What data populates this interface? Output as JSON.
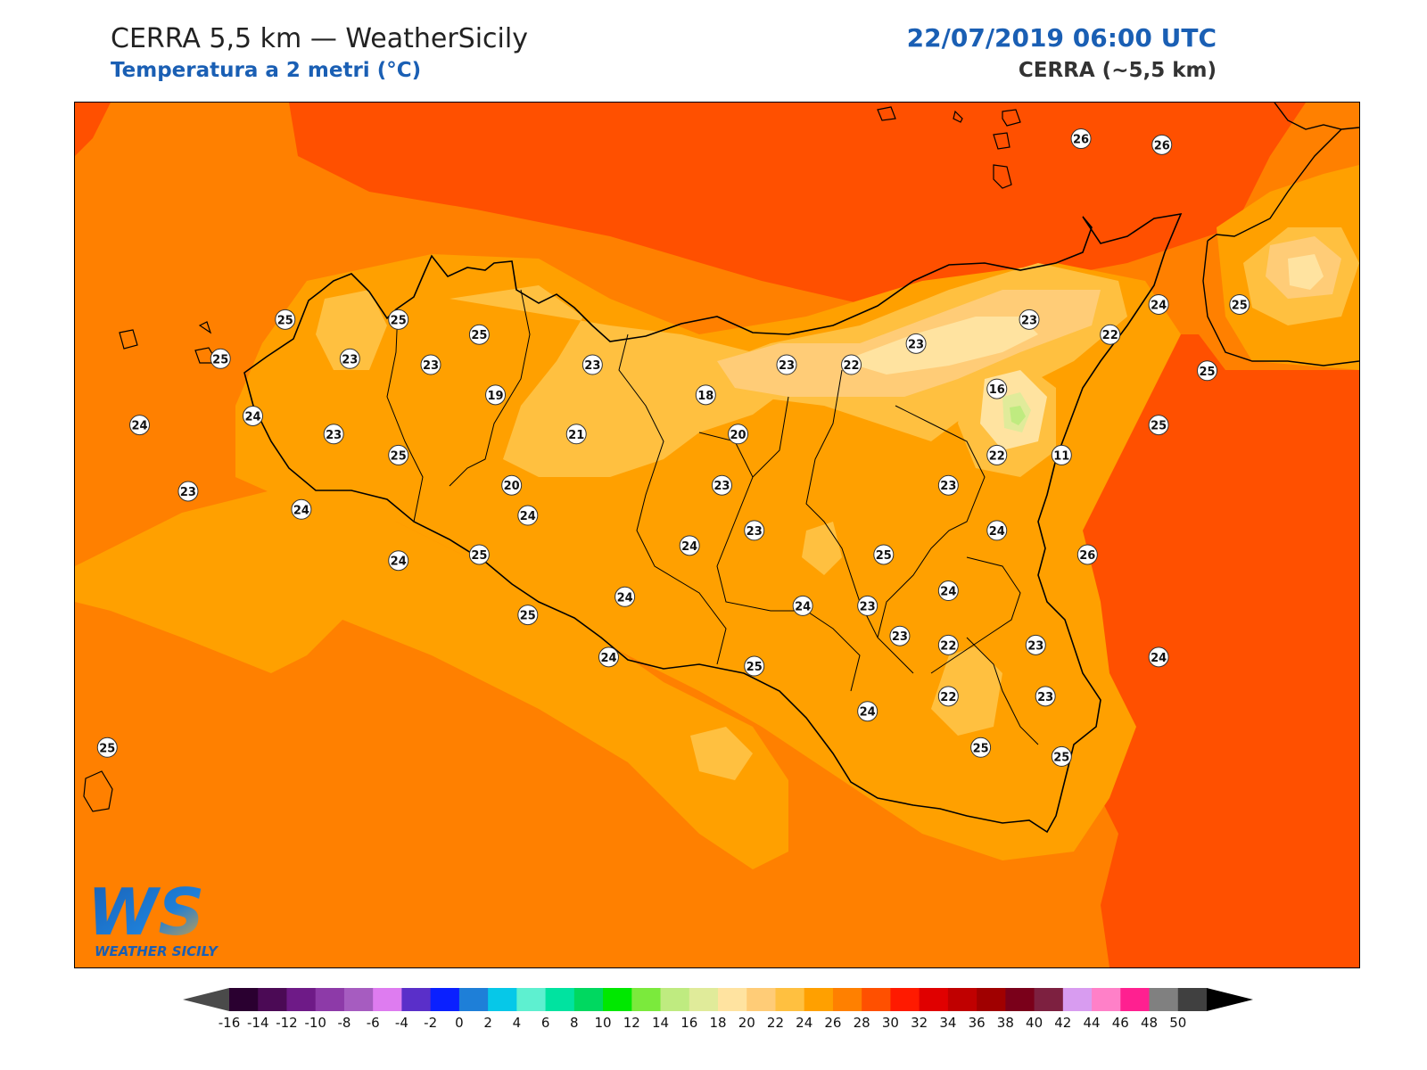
{
  "header": {
    "title": "CERRA 5,5 km — WeatherSicily",
    "subtitle": "Temperatura a 2 metri (°C)",
    "datetime": "22/07/2019 06:00 UTC",
    "model": "CERRA (~5,5 km)"
  },
  "logo": {
    "letters": "WS",
    "name": "WEATHER SICILY"
  },
  "stations": [
    {
      "value": "26",
      "lon": 14.96,
      "lat": 38.8
    },
    {
      "value": "26",
      "lon": 15.21,
      "lat": 38.78
    },
    {
      "value": "25",
      "lon": 12.5,
      "lat": 38.2
    },
    {
      "value": "25",
      "lon": 12.85,
      "lat": 38.2
    },
    {
      "value": "25",
      "lon": 13.1,
      "lat": 38.15
    },
    {
      "value": "25",
      "lon": 12.3,
      "lat": 38.07
    },
    {
      "value": "23",
      "lon": 12.7,
      "lat": 38.07
    },
    {
      "value": "23",
      "lon": 12.95,
      "lat": 38.05
    },
    {
      "value": "19",
      "lon": 13.15,
      "lat": 37.95
    },
    {
      "value": "23",
      "lon": 13.45,
      "lat": 38.05
    },
    {
      "value": "18",
      "lon": 13.8,
      "lat": 37.95
    },
    {
      "value": "23",
      "lon": 14.05,
      "lat": 38.05
    },
    {
      "value": "22",
      "lon": 14.25,
      "lat": 38.05
    },
    {
      "value": "23",
      "lon": 14.45,
      "lat": 38.12
    },
    {
      "value": "23",
      "lon": 14.8,
      "lat": 38.2
    },
    {
      "value": "22",
      "lon": 15.05,
      "lat": 38.15
    },
    {
      "value": "24",
      "lon": 15.2,
      "lat": 38.25
    },
    {
      "value": "25",
      "lon": 15.45,
      "lat": 38.25
    },
    {
      "value": "16",
      "lon": 14.7,
      "lat": 37.97
    },
    {
      "value": "25",
      "lon": 15.35,
      "lat": 38.03
    },
    {
      "value": "25",
      "lon": 15.2,
      "lat": 37.85
    },
    {
      "value": "11",
      "lon": 14.9,
      "lat": 37.75
    },
    {
      "value": "24",
      "lon": 12.05,
      "lat": 37.85
    },
    {
      "value": "24",
      "lon": 12.4,
      "lat": 37.88
    },
    {
      "value": "23",
      "lon": 12.65,
      "lat": 37.82
    },
    {
      "value": "25",
      "lon": 12.85,
      "lat": 37.75
    },
    {
      "value": "21",
      "lon": 13.4,
      "lat": 37.82
    },
    {
      "value": "20",
      "lon": 13.9,
      "lat": 37.82
    },
    {
      "value": "22",
      "lon": 14.7,
      "lat": 37.75
    },
    {
      "value": "23",
      "lon": 12.2,
      "lat": 37.63
    },
    {
      "value": "24",
      "lon": 12.55,
      "lat": 37.57
    },
    {
      "value": "20",
      "lon": 13.2,
      "lat": 37.65
    },
    {
      "value": "23",
      "lon": 13.85,
      "lat": 37.65
    },
    {
      "value": "23",
      "lon": 14.55,
      "lat": 37.65
    },
    {
      "value": "24",
      "lon": 13.25,
      "lat": 37.55
    },
    {
      "value": "24",
      "lon": 14.7,
      "lat": 37.5
    },
    {
      "value": "23",
      "lon": 13.95,
      "lat": 37.5
    },
    {
      "value": "24",
      "lon": 13.75,
      "lat": 37.45
    },
    {
      "value": "25",
      "lon": 13.1,
      "lat": 37.42
    },
    {
      "value": "25",
      "lon": 14.35,
      "lat": 37.42
    },
    {
      "value": "26",
      "lon": 14.98,
      "lat": 37.42
    },
    {
      "value": "24",
      "lon": 12.85,
      "lat": 37.4
    },
    {
      "value": "24",
      "lon": 13.55,
      "lat": 37.28
    },
    {
      "value": "24",
      "lon": 14.1,
      "lat": 37.25
    },
    {
      "value": "23",
      "lon": 14.3,
      "lat": 37.25
    },
    {
      "value": "24",
      "lon": 14.55,
      "lat": 37.3
    },
    {
      "value": "25",
      "lon": 13.25,
      "lat": 37.22
    },
    {
      "value": "23",
      "lon": 14.4,
      "lat": 37.15
    },
    {
      "value": "22",
      "lon": 14.55,
      "lat": 37.12
    },
    {
      "value": "23",
      "lon": 14.82,
      "lat": 37.12
    },
    {
      "value": "24",
      "lon": 13.5,
      "lat": 37.08
    },
    {
      "value": "25",
      "lon": 13.95,
      "lat": 37.05
    },
    {
      "value": "24",
      "lon": 15.2,
      "lat": 37.08
    },
    {
      "value": "22",
      "lon": 14.55,
      "lat": 36.95
    },
    {
      "value": "23",
      "lon": 14.85,
      "lat": 36.95
    },
    {
      "value": "24",
      "lon": 14.3,
      "lat": 36.9
    },
    {
      "value": "25",
      "lon": 11.95,
      "lat": 36.78
    },
    {
      "value": "25",
      "lon": 14.65,
      "lat": 36.78
    },
    {
      "value": "25",
      "lon": 14.9,
      "lat": 36.75
    }
  ],
  "colorbar": {
    "ticks": [
      "-16",
      "-14",
      "-12",
      "-10",
      "-8",
      "-6",
      "-4",
      "-2",
      "0",
      "2",
      "4",
      "6",
      "8",
      "10",
      "12",
      "14",
      "16",
      "18",
      "20",
      "22",
      "24",
      "26",
      "28",
      "30",
      "32",
      "34",
      "36",
      "38",
      "40",
      "42",
      "44",
      "46",
      "48",
      "50"
    ],
    "colors": [
      "#2a0030",
      "#4b0a55",
      "#6e1a87",
      "#8d3aa8",
      "#a65cc0",
      "#de7cf0",
      "#5a2fc9",
      "#0a20ff",
      "#1e7fd8",
      "#06c8e8",
      "#5ef0d0",
      "#00e3a0",
      "#00d860",
      "#00e800",
      "#7bea3c",
      "#bfeb80",
      "#e0eb9a",
      "#ffe3a0",
      "#ffcc77",
      "#ffc040",
      "#ffa000",
      "#ff8000",
      "#ff5000",
      "#ff1a00",
      "#e00000",
      "#c00000",
      "#a00000",
      "#7a001a",
      "#7d2040",
      "#d89cf0",
      "#ff80c8",
      "#ff2090",
      "#808080",
      "#404040"
    ],
    "under_color": "#4a4a4a",
    "over_color": "#000000"
  }
}
